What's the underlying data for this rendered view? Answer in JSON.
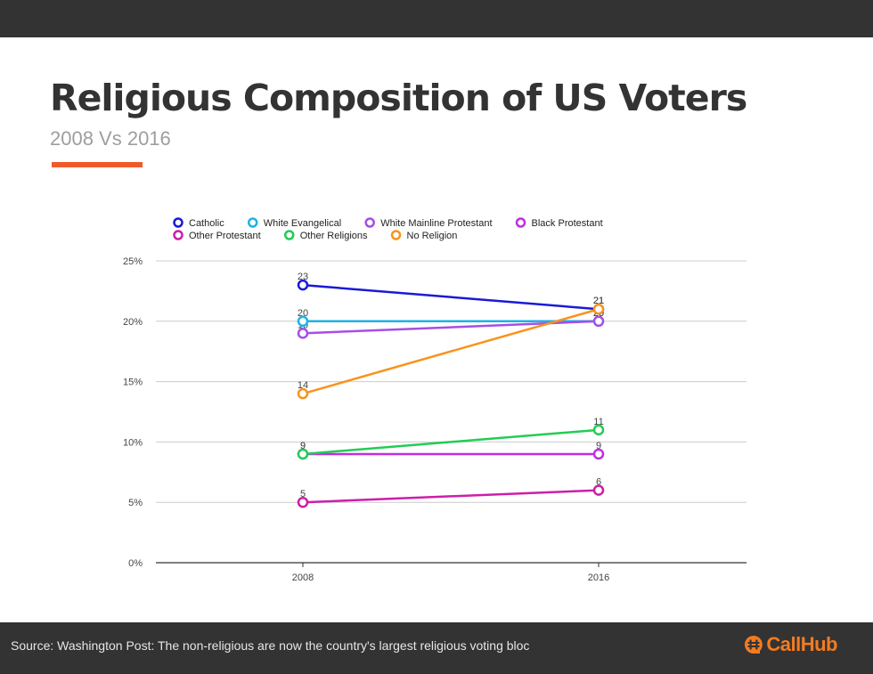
{
  "header": {
    "title": "Religious Composition of US Voters",
    "subtitle": "2008 Vs 2016",
    "accent_color": "#f05a28"
  },
  "footer": {
    "source": "Source: Washington Post: The non-religious are now the country's largest religious voting bloc",
    "brand_name": "CallHub",
    "brand_color": "#f47b20",
    "brand_icon": "callhub-logo-icon"
  },
  "chart_data": {
    "type": "line",
    "categories": [
      "2008",
      "2016"
    ],
    "ylim": [
      0,
      25
    ],
    "yticks": [
      0,
      5,
      10,
      15,
      20,
      25
    ],
    "ytick_labels": [
      "0%",
      "5%",
      "10%",
      "15%",
      "20%",
      "25%"
    ],
    "grid": true,
    "legend_position": "top-left",
    "xlabel": "",
    "ylabel": "",
    "series": [
      {
        "name": "Catholic",
        "values": [
          23,
          21
        ],
        "color": "#1a1ad6"
      },
      {
        "name": "White Evangelical",
        "values": [
          20,
          20
        ],
        "color": "#1fb2e6"
      },
      {
        "name": "White Mainline Protestant",
        "values": [
          19,
          20
        ],
        "color": "#a64ee6"
      },
      {
        "name": "Black Protestant",
        "values": [
          9,
          9
        ],
        "color": "#c02ee0"
      },
      {
        "name": "Other Protestant",
        "values": [
          5,
          6
        ],
        "color": "#cc1faa"
      },
      {
        "name": "Other Religions",
        "values": [
          9,
          11
        ],
        "color": "#22cc55"
      },
      {
        "name": "No Religion",
        "values": [
          14,
          21
        ],
        "color": "#f7941d"
      }
    ]
  }
}
